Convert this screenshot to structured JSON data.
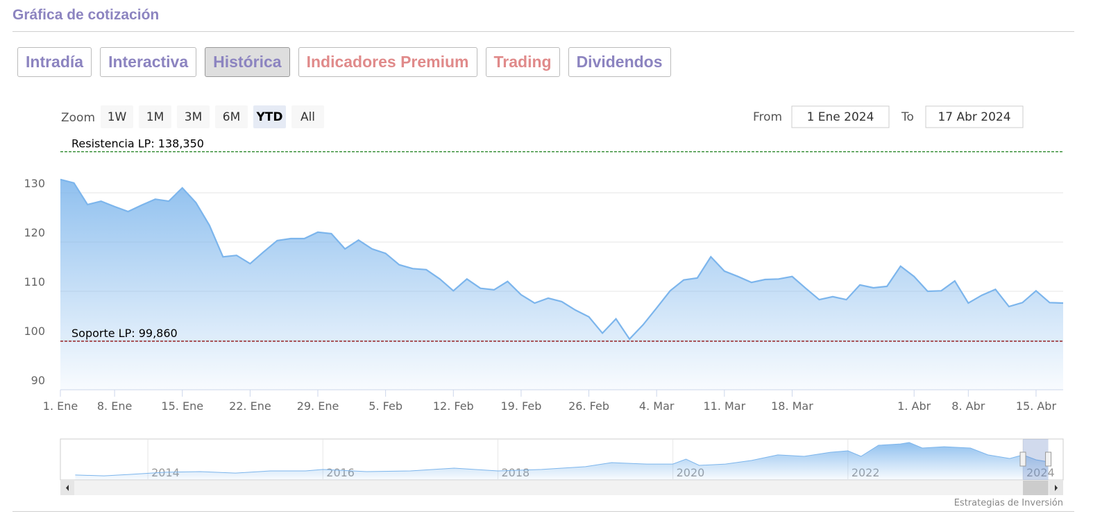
{
  "header": {
    "title": "Gráfica de cotización"
  },
  "tabs": [
    {
      "label": "Intradía",
      "color": "#8c84c0",
      "active": false
    },
    {
      "label": "Interactiva",
      "color": "#8c84c0",
      "active": false
    },
    {
      "label": "Histórica",
      "color": "#8c84c0",
      "active": true
    },
    {
      "label": "Indicadores Premium",
      "color": "#e08a8a",
      "active": false
    },
    {
      "label": "Trading",
      "color": "#e08a8a",
      "active": false
    },
    {
      "label": "Dividendos",
      "color": "#8c84c0",
      "active": false
    }
  ],
  "range_selector": {
    "zoom_label": "Zoom",
    "buttons": [
      {
        "label": "1W",
        "active": false
      },
      {
        "label": "1M",
        "active": false
      },
      {
        "label": "3M",
        "active": false
      },
      {
        "label": "6M",
        "active": false
      },
      {
        "label": "YTD",
        "active": true
      },
      {
        "label": "All",
        "active": false
      }
    ],
    "from_label": "From",
    "from_value": "1 Ene 2024",
    "to_label": "To",
    "to_value": "17 Abr 2024"
  },
  "credits": "Estrategias de Inversión",
  "chart_data": [
    {
      "type": "area",
      "color": "#7cb5ec",
      "categories": [
        "1. Ene",
        null,
        null,
        null,
        "8. Ene",
        null,
        null,
        null,
        null,
        "15. Ene",
        null,
        null,
        null,
        null,
        "22. Ene",
        null,
        null,
        null,
        null,
        "29. Ene",
        null,
        null,
        null,
        null,
        "5. Feb",
        null,
        null,
        null,
        null,
        "12. Feb",
        null,
        null,
        null,
        null,
        "19. Feb",
        null,
        null,
        null,
        null,
        "26. Feb",
        null,
        null,
        null,
        null,
        "4. Mar",
        null,
        null,
        null,
        null,
        "11. Mar",
        null,
        null,
        null,
        null,
        "18. Mar",
        null,
        null,
        null,
        null,
        null,
        null,
        null,
        null,
        "1. Abr",
        null,
        null,
        null,
        "8. Abr",
        null,
        null,
        null,
        null,
        "15. Abr",
        null,
        null
      ],
      "values": [
        132.7,
        132.0,
        127.6,
        128.3,
        127.2,
        126.2,
        127.5,
        128.7,
        128.3,
        131.0,
        128.0,
        123.4,
        117.0,
        117.3,
        115.6,
        118.0,
        120.3,
        120.7,
        120.7,
        122.0,
        121.7,
        118.6,
        120.4,
        118.6,
        117.7,
        115.4,
        114.6,
        114.4,
        112.5,
        110.1,
        112.5,
        110.6,
        110.3,
        112.0,
        109.3,
        107.6,
        108.6,
        107.9,
        106.2,
        104.8,
        101.5,
        104.4,
        100.3,
        103.2,
        106.6,
        110.1,
        112.3,
        112.7,
        117.0,
        114.1,
        113.0,
        111.8,
        112.4,
        112.5,
        113.0,
        110.6,
        108.3,
        108.9,
        108.3,
        111.3,
        110.7,
        111.0,
        115.1,
        113.0,
        110.0,
        110.1,
        112.1,
        107.6,
        109.2,
        110.4,
        106.9,
        107.7,
        110.1,
        107.7,
        107.6
      ],
      "ylim": [
        90,
        140
      ],
      "yticks": [
        90,
        100,
        110,
        120,
        130
      ],
      "grid": true,
      "plot_lines": [
        {
          "label": "Resistencia LP: 138,350",
          "value": 138.35,
          "color": "#1a7f1a"
        },
        {
          "label": "Soporte LP: 99,860",
          "value": 99.86,
          "color": "#8b0000"
        }
      ]
    },
    {
      "type": "area",
      "color": "#7cb5ec",
      "x": [
        2013.17,
        2013.5,
        2013.8,
        2014.2,
        2014.6,
        2015.0,
        2015.4,
        2015.8,
        2016.0,
        2016.5,
        2017.0,
        2017.5,
        2018.0,
        2018.5,
        2019.0,
        2019.3,
        2019.7,
        2020.0,
        2020.15,
        2020.3,
        2020.6,
        2020.9,
        2021.2,
        2021.5,
        2021.8,
        2022.0,
        2022.15,
        2022.35,
        2022.6,
        2022.7,
        2022.85,
        2023.1,
        2023.4,
        2023.6,
        2023.85,
        2024.0,
        2024.15,
        2024.29
      ],
      "values": [
        30,
        25,
        34,
        47,
        51,
        42,
        55,
        55,
        64,
        51,
        55,
        72,
        55,
        64,
        81,
        106,
        97,
        97,
        127,
        89,
        97,
        119,
        153,
        144,
        169,
        178,
        144,
        212,
        220,
        229,
        195,
        203,
        195,
        153,
        131,
        153,
        123,
        110
      ],
      "xlim": [
        2013,
        2024.46
      ],
      "xticks": [
        2014,
        2016,
        2018,
        2020,
        2022,
        2024
      ],
      "ylim": [
        0,
        250
      ]
    }
  ]
}
